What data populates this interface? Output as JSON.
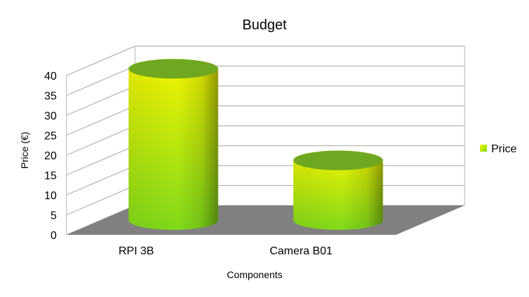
{
  "chart_data": {
    "type": "bar",
    "style": "3d-cylinder",
    "title": "Budget",
    "xlabel": "Components",
    "ylabel": "Price (€)",
    "categories": [
      "RPI 3B",
      "Camera B01"
    ],
    "series": [
      {
        "name": "Price",
        "values": [
          38,
          15
        ]
      }
    ],
    "ylim": [
      0,
      40
    ],
    "yticks": [
      0,
      5,
      10,
      15,
      20,
      25,
      30,
      35,
      40
    ],
    "grid": true,
    "legend": "right",
    "colors": {
      "bar_top": "#f5f500",
      "bar_bottom": "#7fd91a",
      "bar_edge_dark": "#4a8a10",
      "cap": "#6fa820",
      "floor": "#808080",
      "grid": "#b3b3b3"
    }
  }
}
